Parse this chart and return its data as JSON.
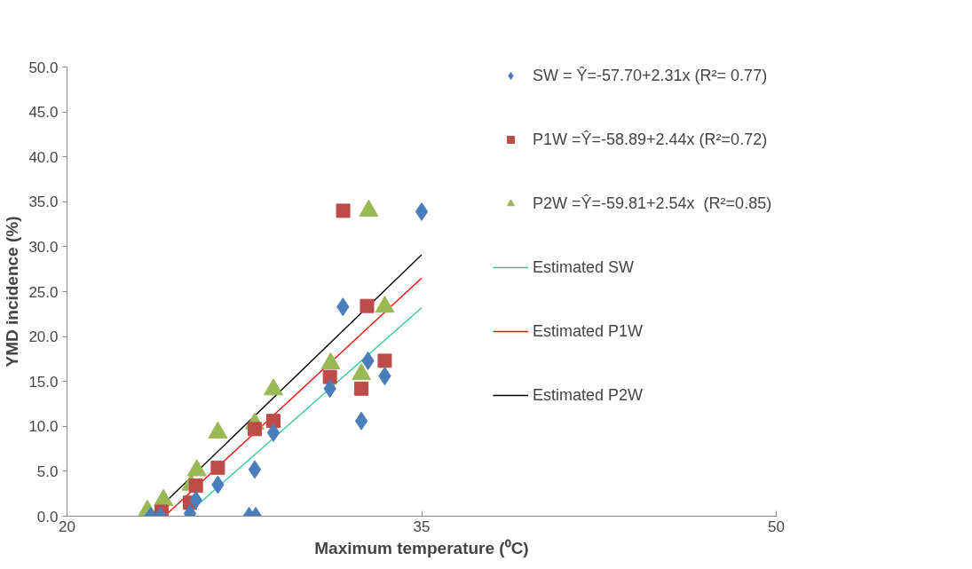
{
  "chart_data": {
    "type": "scatter",
    "xlabel": "Maximum temperature (⁰C)",
    "ylabel": "YMD incidence (%)",
    "xlim": [
      20,
      50
    ],
    "xticks": [
      20,
      35,
      50
    ],
    "ylim": [
      0,
      50
    ],
    "yticks": [
      {
        "value": 0,
        "label": "0.0"
      },
      {
        "value": 5,
        "label": "5.0"
      },
      {
        "value": 10,
        "label": "10.0"
      },
      {
        "value": 15,
        "label": "15.0"
      },
      {
        "value": 20,
        "label": "20.0"
      },
      {
        "value": 25,
        "label": "25.0"
      },
      {
        "value": 30,
        "label": "30.0"
      },
      {
        "value": 35,
        "label": "35.0"
      },
      {
        "value": 40,
        "label": "40.0"
      },
      {
        "value": 45,
        "label": "45.0"
      },
      {
        "value": 50,
        "label": "50.0"
      }
    ],
    "legend": "top right",
    "series": [
      {
        "name": "SW = Ŷ=-57.70+2.31x (R²= 0.77)",
        "type": "scatter",
        "marker": "diamond",
        "color": "#4a7ebb",
        "x": [
          35.0,
          31.67,
          32.73,
          33.44,
          31.12,
          32.45,
          28.73,
          27.94,
          27.7,
          27.98,
          26.38,
          25.45,
          25.2,
          23.54,
          23.95
        ],
        "values": [
          33.9,
          23.3,
          17.3,
          15.6,
          14.2,
          10.6,
          9.3,
          5.2,
          0,
          0,
          3.5,
          1.8,
          0.3,
          0,
          0
        ]
      },
      {
        "name": "P1W =Ŷ=-58.89+2.44x (R²=0.72)",
        "type": "scatter",
        "marker": "square",
        "color": "#be4b48",
        "x": [
          31.68,
          32.69,
          33.44,
          31.12,
          32.45,
          28.73,
          27.94,
          26.38,
          25.45,
          25.2,
          24.0
        ],
        "values": [
          34.0,
          23.4,
          17.3,
          15.5,
          14.2,
          10.6,
          9.7,
          5.4,
          3.4,
          1.5,
          0.5
        ]
      },
      {
        "name": "P2W =Ŷ=-59.81+2.54x  (R²=0.85)",
        "type": "scatter",
        "marker": "triangle",
        "color": "#98b954",
        "x": [
          32.76,
          33.44,
          31.15,
          32.45,
          28.73,
          27.94,
          26.38,
          25.49,
          25.25,
          24.08,
          23.4
        ],
        "values": [
          34.0,
          23.3,
          17.0,
          15.8,
          14.1,
          10.3,
          9.3,
          5.1,
          3.5,
          1.8,
          0.6
        ]
      },
      {
        "name": "Estimated SW",
        "type": "line",
        "color": "#2fc79b",
        "x": [
          25.2,
          35.0
        ],
        "values": [
          0.5,
          23.2
        ]
      },
      {
        "name": "Estimated P1W",
        "type": "line",
        "color": "#ff0000",
        "x": [
          24.29,
          35.0
        ],
        "values": [
          0.4,
          26.5
        ]
      },
      {
        "name": "Estimated P2W",
        "type": "line",
        "color": "#000000",
        "x": [
          23.54,
          35.0
        ],
        "values": [
          0.0,
          29.1
        ]
      }
    ]
  }
}
